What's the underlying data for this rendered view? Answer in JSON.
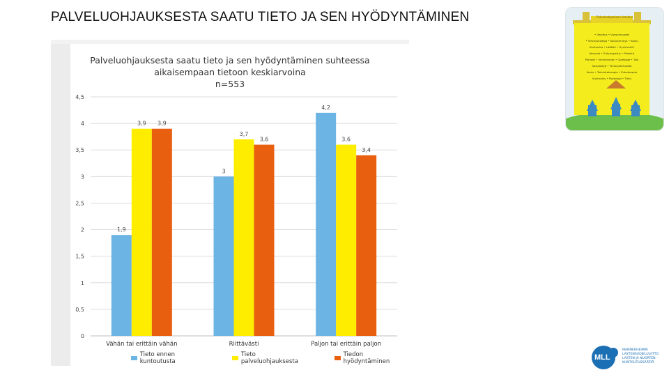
{
  "slide": {
    "title": "PALVELUOHJAUKSESTA SAATU TIETO JA SEN HYÖDYNTÄMINEN"
  },
  "chart_data": {
    "type": "bar",
    "title_lines": [
      "Palveluohjauksesta saatu tieto ja sen hyödyntäminen suhteessa",
      "aikaisempaan tietoon keskiarvoina",
      "n=553"
    ],
    "categories": [
      "Vähän tai erittäin vähän",
      "Riittävästi",
      "Paljon tai erittäin paljon"
    ],
    "series": [
      {
        "name": "Tieto ennen kuntoutusta",
        "color": "#6cb4e4",
        "values": [
          1.9,
          3,
          4.2
        ],
        "labels": [
          "1,9",
          "3",
          "4,2"
        ]
      },
      {
        "name": "Tieto palveluohjauksesta",
        "color": "#ffed00",
        "values": [
          3.9,
          3.7,
          3.6
        ],
        "labels": [
          "3,9",
          "3,7",
          "3,6"
        ]
      },
      {
        "name": "Tiedon hyödyntäminen",
        "color": "#e8600f",
        "values": [
          3.9,
          3.6,
          3.4
        ],
        "labels": [
          "3,9",
          "3,6",
          "3,4"
        ]
      }
    ],
    "ylim": [
      0,
      4.5
    ],
    "yticks": [
      0,
      0.5,
      1,
      1.5,
      2,
      2.5,
      3,
      3.5,
      4,
      4.5
    ],
    "ytick_labels": [
      "0",
      "0,5",
      "1",
      "1,5",
      "2",
      "2,5",
      "3",
      "3,5",
      "4",
      "4,5"
    ],
    "grid": true,
    "legend": "bottom"
  },
  "poster_thumbnail": {
    "heading": "Palveluohjauksen ilmoitus",
    "lines": [
      "• Ilmoitus • Vuosineuvolat",
      "• Terveyshoitaja • Kouluterveys • Koulu",
      "Kuntoutus • Lääkäri • Hyvinvointi",
      "Neuvola • Erityisopetus • Palvelut",
      "Perheet • Vanhemmat • Opettajat • Tuki",
      "Sosiaalityö • Terveydenhuolto",
      "Koulu • Toimintaterapia • Puheterapia",
      "Kuntoutus • Psykologi • Tieto"
    ]
  },
  "logo": {
    "mark": "MLL",
    "text_lines": [
      "MANNERHEIMIN",
      "LASTENSUOJELULIITTO",
      "LASTEN JA NUORTEN",
      "KUNTOUTUSSÄÄTIÖ"
    ],
    "color": "#1b6fb4"
  }
}
